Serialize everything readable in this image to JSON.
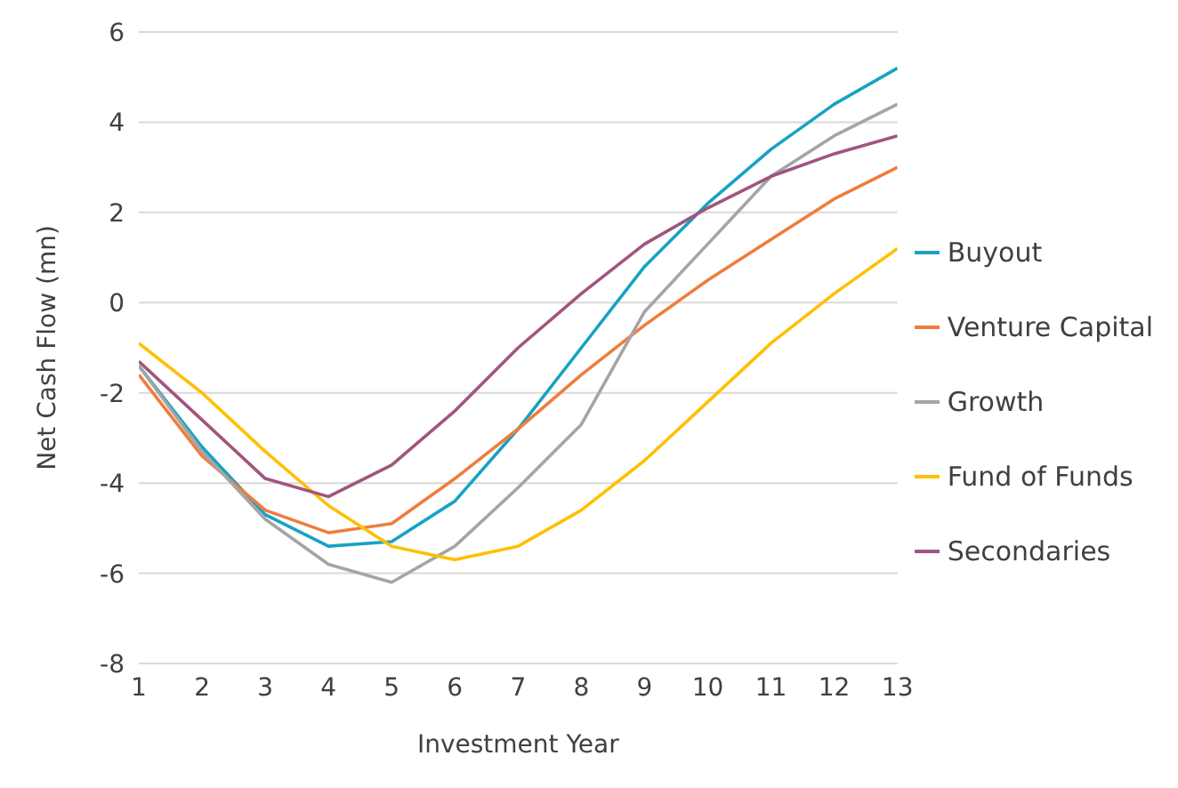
{
  "chart_data": {
    "type": "line",
    "xlabel": "Investment Year",
    "ylabel": "Net Cash Flow (mn)",
    "x": [
      1,
      2,
      3,
      4,
      5,
      6,
      7,
      8,
      9,
      10,
      11,
      12,
      13
    ],
    "xlim": [
      1,
      13
    ],
    "xticks": [
      1,
      2,
      3,
      4,
      5,
      6,
      7,
      8,
      9,
      10,
      11,
      12,
      13
    ],
    "ylim": [
      -8,
      6
    ],
    "yticks": [
      -8,
      -6,
      -4,
      -2,
      0,
      2,
      4,
      6
    ],
    "grid": "y",
    "legend": "right",
    "marker": "none",
    "line_style": "solid",
    "series": [
      {
        "name": "Buyout",
        "color": "#17a2c4",
        "values": [
          -1.4,
          -3.2,
          -4.7,
          -5.4,
          -5.3,
          -4.4,
          -2.8,
          -1.0,
          0.8,
          2.2,
          3.4,
          4.4,
          5.2
        ]
      },
      {
        "name": "Venture Capital",
        "color": "#ef7d3d",
        "values": [
          -1.6,
          -3.4,
          -4.6,
          -5.1,
          -4.9,
          -3.9,
          -2.8,
          -1.6,
          -0.5,
          0.5,
          1.4,
          2.3,
          3.0
        ]
      },
      {
        "name": "Growth",
        "color": "#a5a5a5",
        "values": [
          -1.4,
          -3.3,
          -4.8,
          -5.8,
          -6.2,
          -5.4,
          -4.1,
          -2.7,
          -0.2,
          1.3,
          2.8,
          3.7,
          4.4
        ]
      },
      {
        "name": "Fund of Funds",
        "color": "#ffc000",
        "values": [
          -0.9,
          -2.0,
          -3.3,
          -4.5,
          -5.4,
          -5.7,
          -5.4,
          -4.6,
          -3.5,
          -2.2,
          -0.9,
          0.2,
          1.2
        ]
      },
      {
        "name": "Secondaries",
        "color": "#a0557e",
        "values": [
          -1.3,
          -2.6,
          -3.9,
          -4.3,
          -3.6,
          -2.4,
          -1.0,
          0.2,
          1.3,
          2.1,
          2.8,
          3.3,
          3.7
        ]
      }
    ]
  }
}
